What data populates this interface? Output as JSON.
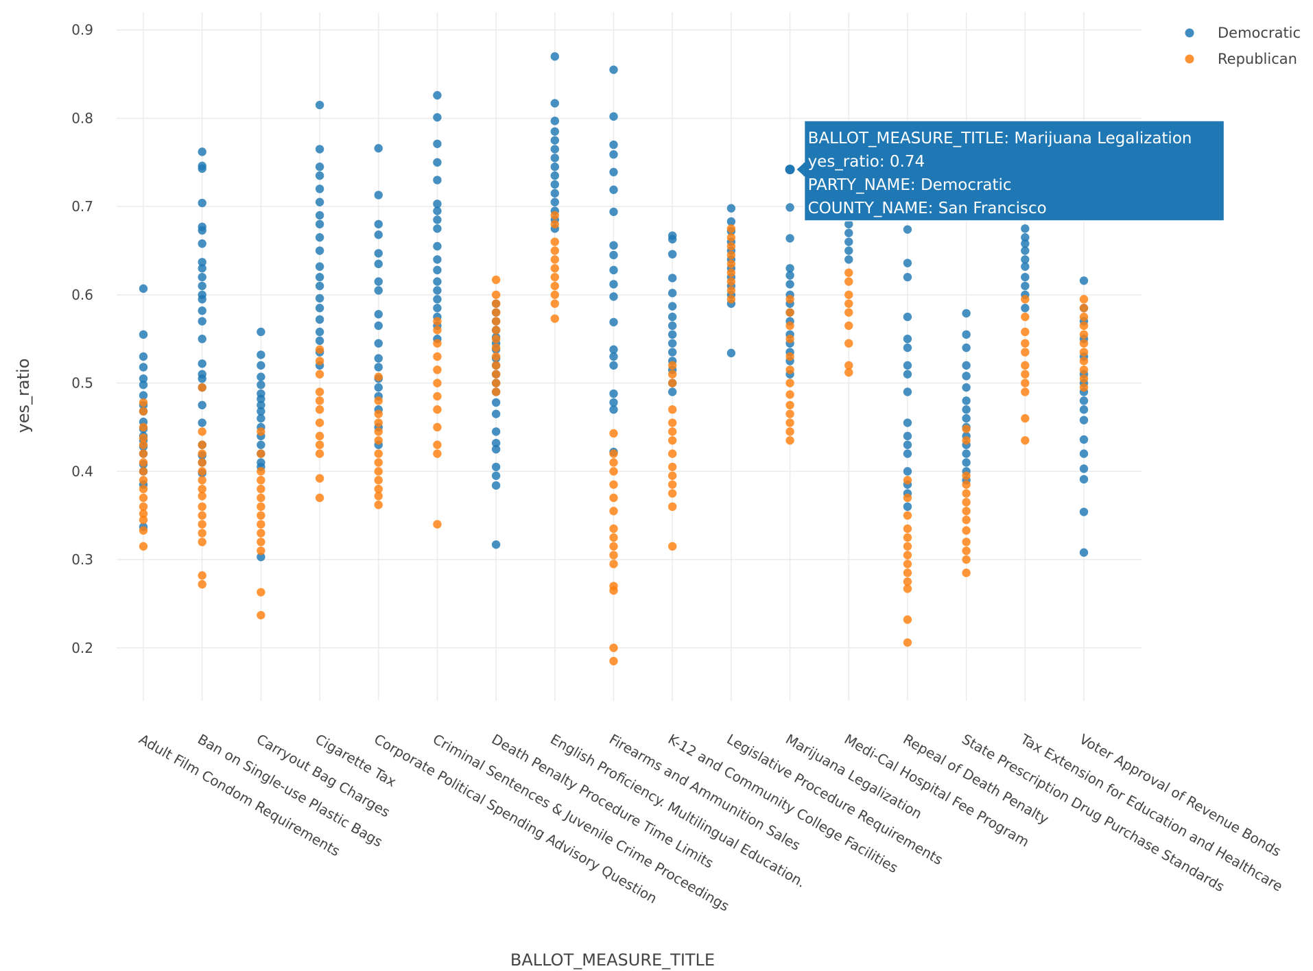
{
  "chart_data": {
    "type": "scatter",
    "xlabel": "BALLOT_MEASURE_TITLE",
    "ylabel": "yes_ratio",
    "ylim": [
      0.14,
      0.92
    ],
    "yticks": [
      0.2,
      0.3,
      0.4,
      0.5,
      0.6,
      0.7,
      0.8,
      0.9
    ],
    "grid": true,
    "legend_position": "top-right",
    "categories": [
      "Adult Film Condom Requirements",
      "Ban on Single-use Plastic Bags",
      "Carryout Bag Charges",
      "Cigarette Tax",
      "Corporate Political Spending Advisory Question",
      "Criminal Sentences & Juvenile Crime Proceedings",
      "Death Penalty Procedure Time Limits",
      "English Proficiency. Multilingual Education.",
      "Firearms and Ammunition Sales",
      "K-12 and Community College Facilities",
      "Legislative Procedure Requirements",
      "Marijuana Legalization",
      "Medi-Cal Hospital Fee Program",
      "Repeal of Death Penalty",
      "State Prescription Drug Purchase Standards",
      "Tax Extension for Education and Healthcare",
      "Voter Approval of Revenue Bonds"
    ],
    "series": [
      {
        "name": "Democratic",
        "color": "#1f77b4",
        "values": [
          [
            0.607,
            0.555,
            0.53,
            0.518,
            0.505,
            0.498,
            0.486,
            0.475,
            0.468,
            0.456,
            0.448,
            0.44,
            0.435,
            0.428,
            0.42,
            0.408,
            0.4,
            0.385,
            0.337
          ],
          [
            0.762,
            0.746,
            0.743,
            0.704,
            0.677,
            0.673,
            0.658,
            0.637,
            0.63,
            0.62,
            0.61,
            0.6,
            0.595,
            0.582,
            0.57,
            0.55,
            0.522,
            0.51,
            0.505,
            0.495,
            0.475,
            0.455,
            0.43,
            0.418,
            0.41,
            0.398
          ],
          [
            0.558,
            0.532,
            0.52,
            0.507,
            0.498,
            0.488,
            0.482,
            0.475,
            0.468,
            0.46,
            0.45,
            0.44,
            0.43,
            0.42,
            0.41,
            0.405,
            0.303
          ],
          [
            0.815,
            0.765,
            0.745,
            0.735,
            0.72,
            0.705,
            0.69,
            0.68,
            0.665,
            0.65,
            0.632,
            0.62,
            0.61,
            0.596,
            0.585,
            0.572,
            0.558,
            0.548,
            0.535,
            0.52
          ],
          [
            0.766,
            0.713,
            0.68,
            0.668,
            0.647,
            0.635,
            0.615,
            0.605,
            0.578,
            0.565,
            0.545,
            0.528,
            0.518,
            0.505,
            0.495,
            0.485,
            0.47,
            0.45,
            0.43
          ],
          [
            0.826,
            0.801,
            0.771,
            0.75,
            0.73,
            0.703,
            0.695,
            0.685,
            0.675,
            0.655,
            0.64,
            0.628,
            0.615,
            0.605,
            0.595,
            0.585,
            0.575,
            0.565,
            0.55
          ],
          [
            0.59,
            0.58,
            0.57,
            0.56,
            0.552,
            0.545,
            0.538,
            0.528,
            0.52,
            0.51,
            0.5,
            0.49,
            0.478,
            0.465,
            0.445,
            0.432,
            0.425,
            0.405,
            0.395,
            0.384,
            0.317
          ],
          [
            0.87,
            0.817,
            0.797,
            0.785,
            0.775,
            0.765,
            0.755,
            0.745,
            0.735,
            0.725,
            0.715,
            0.705,
            0.695,
            0.685,
            0.675
          ],
          [
            0.855,
            0.802,
            0.77,
            0.759,
            0.739,
            0.719,
            0.694,
            0.656,
            0.645,
            0.628,
            0.612,
            0.598,
            0.569,
            0.538,
            0.53,
            0.52,
            0.488,
            0.478,
            0.47,
            0.422
          ],
          [
            0.667,
            0.663,
            0.646,
            0.619,
            0.602,
            0.587,
            0.575,
            0.565,
            0.555,
            0.545,
            0.535,
            0.525,
            0.515,
            0.5,
            0.49
          ],
          [
            0.698,
            0.683,
            0.672,
            0.66,
            0.65,
            0.64,
            0.63,
            0.62,
            0.61,
            0.6,
            0.59,
            0.534
          ],
          [
            0.742,
            0.699,
            0.664,
            0.63,
            0.622,
            0.612,
            0.6,
            0.59,
            0.58,
            0.57,
            0.555,
            0.545,
            0.535,
            0.525,
            0.51
          ],
          [
            0.74,
            0.72,
            0.71,
            0.7,
            0.69,
            0.68,
            0.67,
            0.66,
            0.65,
            0.64
          ],
          [
            0.674,
            0.636,
            0.62,
            0.575,
            0.55,
            0.54,
            0.52,
            0.51,
            0.49,
            0.455,
            0.44,
            0.43,
            0.42,
            0.4,
            0.385,
            0.375,
            0.36
          ],
          [
            0.579,
            0.555,
            0.54,
            0.52,
            0.508,
            0.495,
            0.48,
            0.47,
            0.46,
            0.45,
            0.44,
            0.43,
            0.42,
            0.41,
            0.4,
            0.39
          ],
          [
            0.692,
            0.675,
            0.665,
            0.658,
            0.65,
            0.64,
            0.632,
            0.62,
            0.61,
            0.6,
            0.585
          ],
          [
            0.616,
            0.585,
            0.57,
            0.55,
            0.53,
            0.51,
            0.5,
            0.49,
            0.48,
            0.47,
            0.458,
            0.436,
            0.42,
            0.403,
            0.391,
            0.354,
            0.308
          ]
        ]
      },
      {
        "name": "Republican",
        "color": "#ff7f0e",
        "values": [
          [
            0.478,
            0.468,
            0.45,
            0.438,
            0.43,
            0.42,
            0.41,
            0.4,
            0.39,
            0.38,
            0.37,
            0.36,
            0.352,
            0.345,
            0.333,
            0.315
          ],
          [
            0.495,
            0.445,
            0.43,
            0.42,
            0.41,
            0.4,
            0.39,
            0.38,
            0.372,
            0.36,
            0.35,
            0.34,
            0.33,
            0.32,
            0.282,
            0.272
          ],
          [
            0.445,
            0.42,
            0.4,
            0.39,
            0.38,
            0.37,
            0.36,
            0.35,
            0.34,
            0.33,
            0.32,
            0.31,
            0.263,
            0.237
          ],
          [
            0.538,
            0.525,
            0.51,
            0.49,
            0.48,
            0.47,
            0.455,
            0.44,
            0.43,
            0.42,
            0.392,
            0.37
          ],
          [
            0.507,
            0.48,
            0.465,
            0.455,
            0.445,
            0.435,
            0.42,
            0.41,
            0.4,
            0.39,
            0.38,
            0.372,
            0.362
          ],
          [
            0.57,
            0.56,
            0.545,
            0.53,
            0.515,
            0.5,
            0.485,
            0.47,
            0.45,
            0.43,
            0.42,
            0.34
          ],
          [
            0.617,
            0.6,
            0.59,
            0.58,
            0.57,
            0.56,
            0.55,
            0.54,
            0.53,
            0.52,
            0.51,
            0.5,
            0.49
          ],
          [
            0.69,
            0.68,
            0.66,
            0.65,
            0.64,
            0.63,
            0.62,
            0.61,
            0.6,
            0.59,
            0.573
          ],
          [
            0.443,
            0.42,
            0.41,
            0.4,
            0.385,
            0.37,
            0.355,
            0.335,
            0.325,
            0.315,
            0.305,
            0.295,
            0.27,
            0.265,
            0.2,
            0.185
          ],
          [
            0.52,
            0.51,
            0.5,
            0.47,
            0.455,
            0.445,
            0.435,
            0.42,
            0.405,
            0.395,
            0.385,
            0.375,
            0.36,
            0.315
          ],
          [
            0.675,
            0.665,
            0.655,
            0.645,
            0.635,
            0.625,
            0.615,
            0.605,
            0.595
          ],
          [
            0.595,
            0.58,
            0.565,
            0.55,
            0.53,
            0.515,
            0.5,
            0.487,
            0.475,
            0.465,
            0.455,
            0.445,
            0.435
          ],
          [
            0.69,
            0.625,
            0.615,
            0.6,
            0.59,
            0.58,
            0.565,
            0.545,
            0.52,
            0.512
          ],
          [
            0.39,
            0.37,
            0.35,
            0.335,
            0.325,
            0.315,
            0.305,
            0.295,
            0.285,
            0.275,
            0.267,
            0.232,
            0.206
          ],
          [
            0.448,
            0.435,
            0.395,
            0.385,
            0.375,
            0.365,
            0.355,
            0.345,
            0.333,
            0.32,
            0.31,
            0.3,
            0.285
          ],
          [
            0.595,
            0.575,
            0.558,
            0.545,
            0.535,
            0.52,
            0.51,
            0.5,
            0.49,
            0.46,
            0.435
          ],
          [
            0.595,
            0.585,
            0.575,
            0.565,
            0.555,
            0.545,
            0.535,
            0.525,
            0.515,
            0.505,
            0.495
          ]
        ]
      }
    ]
  },
  "tooltip": {
    "lines": [
      "BALLOT_MEASURE_TITLE: Marijuana Legalization",
      "yes_ratio: 0.74",
      "PARTY_NAME: Democratic",
      "COUNTY_NAME: San Francisco"
    ],
    "category": "Marijuana Legalization",
    "value": 0.742,
    "color": "#1f77b4"
  }
}
